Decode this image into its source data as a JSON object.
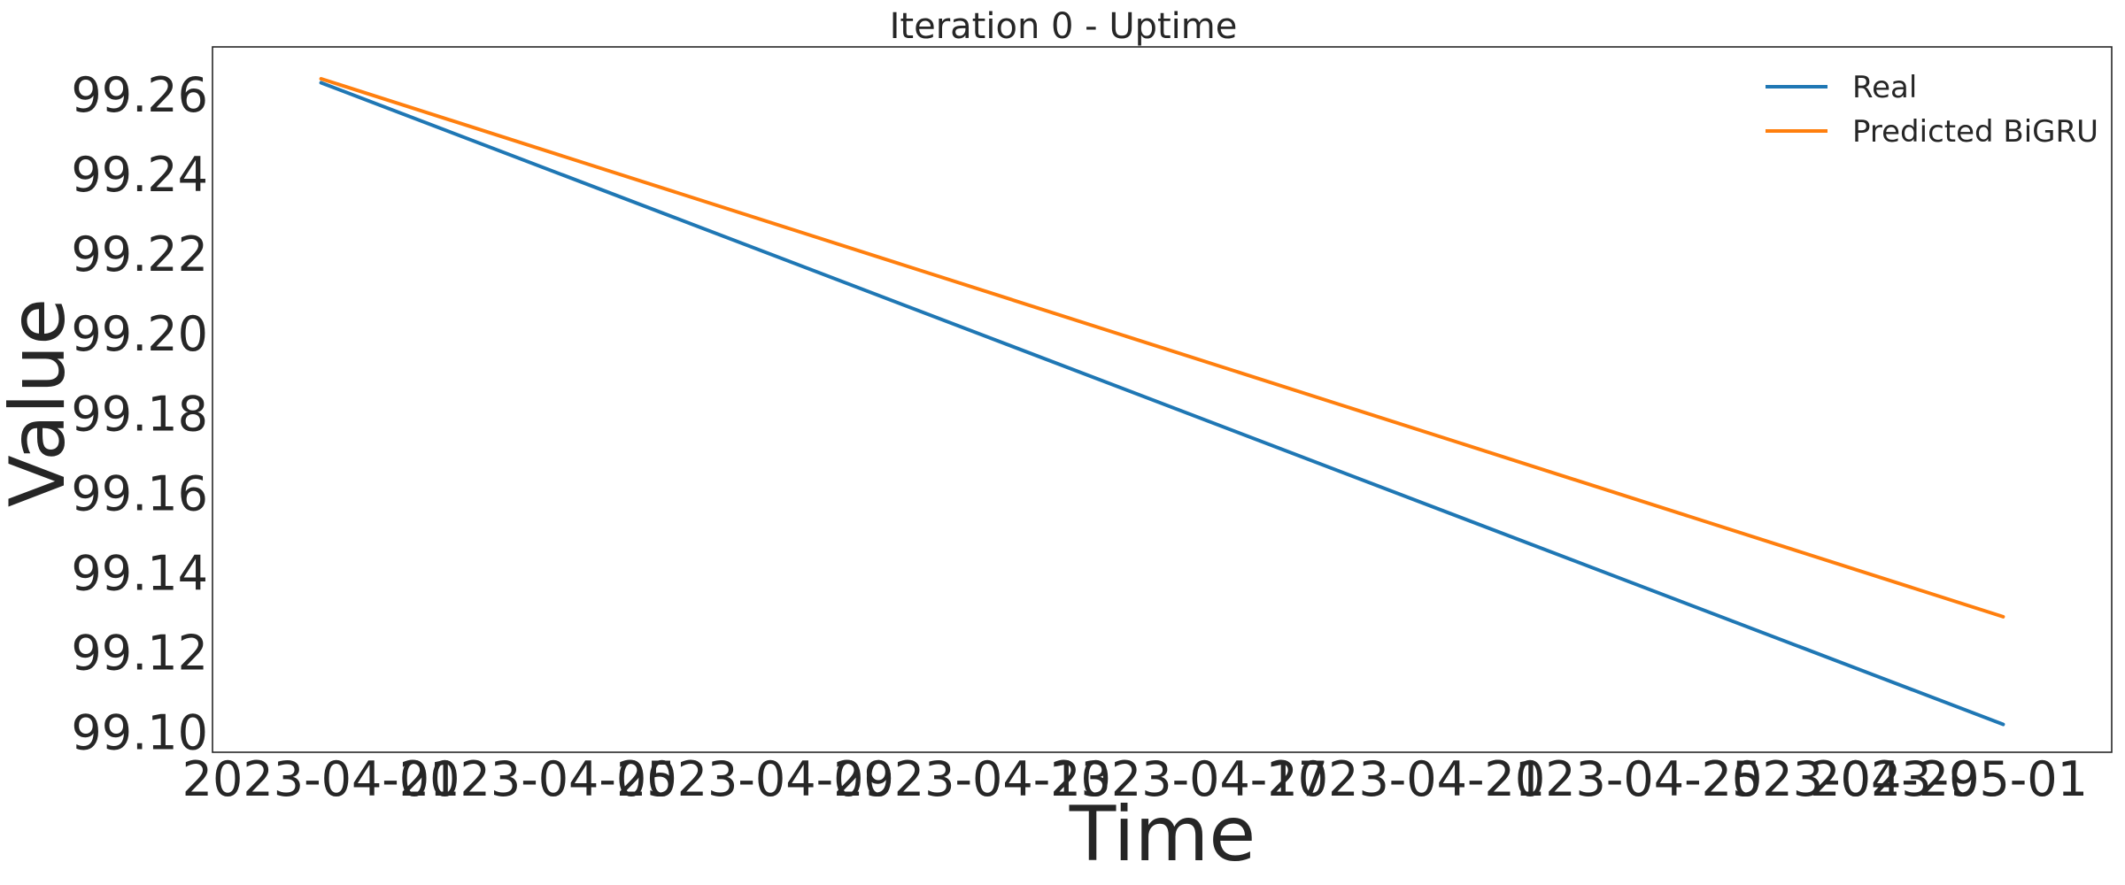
{
  "chart_data": {
    "type": "line",
    "title": "Iteration 0 - Uptime",
    "xlabel": "Time",
    "ylabel": "Value",
    "x_tick_labels": [
      "2023-04-01",
      "2023-04-05",
      "2023-04-09",
      "2023-04-13",
      "2023-04-17",
      "2023-04-21",
      "2023-04-25",
      "2023-04-29",
      "2023-05-01"
    ],
    "x_ticks": [
      "2023-04-01",
      "2023-04-05",
      "2023-04-09",
      "2023-04-13",
      "2023-04-17",
      "2023-04-21",
      "2023-04-25",
      "2023-04-29",
      "2023-05-01"
    ],
    "xlim": [
      "2023-03-30",
      "2023-05-04"
    ],
    "ylim": [
      99.095,
      99.272
    ],
    "y_tick_labels": [
      "99.10",
      "99.12",
      "99.14",
      "99.16",
      "99.18",
      "99.20",
      "99.22",
      "99.24",
      "99.26"
    ],
    "y_ticks": [
      99.1,
      99.12,
      99.14,
      99.16,
      99.18,
      99.2,
      99.22,
      99.24,
      99.26
    ],
    "grid": false,
    "legend_position": "top-right",
    "x": [
      "2023-04-01",
      "2023-05-02"
    ],
    "series": [
      {
        "name": "Real",
        "color": "#1f77b4",
        "values": [
          99.263,
          99.102
        ]
      },
      {
        "name": "Predicted BiGRU",
        "color": "#ff7f0e",
        "values": [
          99.264,
          99.129
        ]
      }
    ]
  }
}
